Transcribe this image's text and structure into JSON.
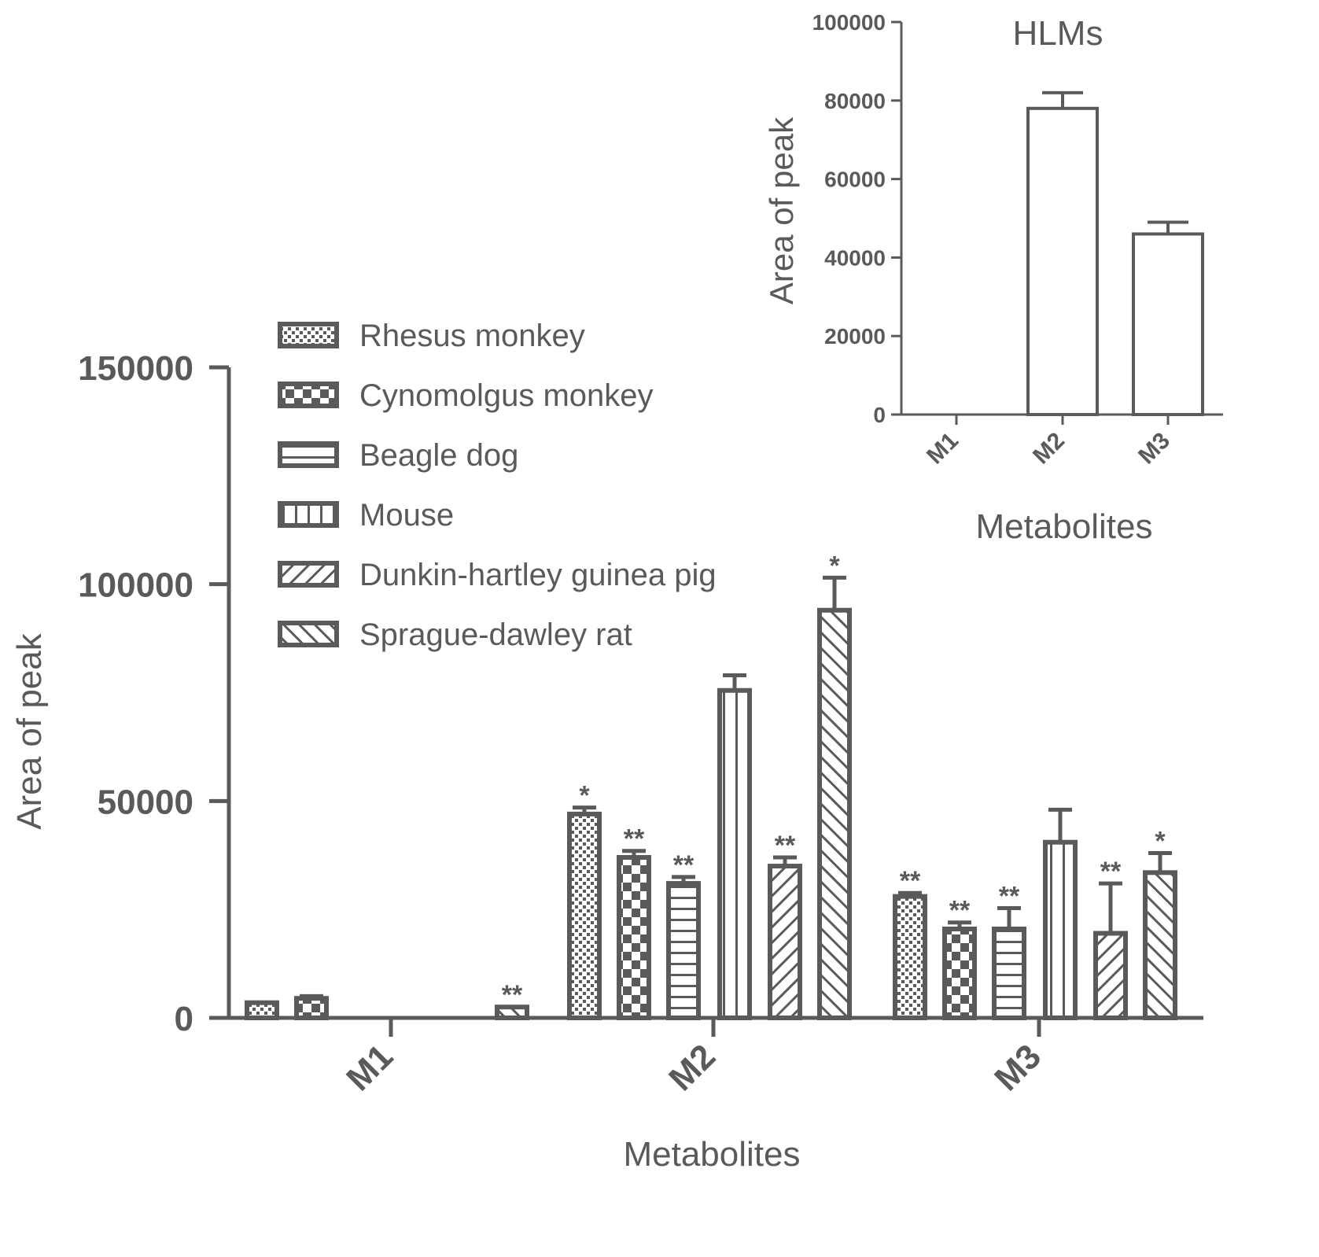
{
  "colors": {
    "ink": "#5a5a5a",
    "fill": "#ffffff"
  },
  "chart_data": [
    {
      "type": "bar",
      "title": "",
      "xlabel": "Metabolites",
      "ylabel": "Area of peak",
      "ylim": [
        0,
        150000
      ],
      "yticks": [
        "0",
        "50000",
        "100000",
        "150000"
      ],
      "categories": [
        "M1",
        "M2",
        "M3"
      ],
      "legend_position": "top-left",
      "series": [
        {
          "name": "Rhesus monkey",
          "pattern": "dots",
          "values": [
            3500,
            47000,
            28000
          ],
          "errors": [
            0,
            1500,
            800
          ],
          "significance": [
            "",
            "*",
            "**"
          ]
        },
        {
          "name": "Cynomolgus monkey",
          "pattern": "checker",
          "values": [
            4500,
            37000,
            20500
          ],
          "errors": [
            500,
            1500,
            1500
          ],
          "significance": [
            "",
            "**",
            "**"
          ]
        },
        {
          "name": "Beagle dog",
          "pattern": "hlines",
          "values": [
            0,
            31000,
            20500
          ],
          "errors": [
            0,
            1500,
            4800
          ],
          "significance": [
            "",
            "**",
            "**"
          ]
        },
        {
          "name": "Mouse",
          "pattern": "vlines",
          "values": [
            0,
            75500,
            40500
          ],
          "errors": [
            0,
            3500,
            7500
          ],
          "significance": [
            "",
            "",
            ""
          ]
        },
        {
          "name": "Dunkin-hartley guinea pig",
          "pattern": "diag-up",
          "values": [
            0,
            35000,
            19500
          ],
          "errors": [
            0,
            2000,
            11500
          ],
          "significance": [
            "",
            "**",
            "**"
          ]
        },
        {
          "name": "Sprague-dawley rat",
          "pattern": "diag-down",
          "values": [
            2500,
            94000,
            33500
          ],
          "errors": [
            0,
            7500,
            4500
          ],
          "significance": [
            "**",
            "*",
            "*"
          ]
        }
      ]
    },
    {
      "type": "bar",
      "title": "HLMs",
      "xlabel": "Metabolites",
      "ylabel": "Area of peak",
      "ylim": [
        0,
        100000
      ],
      "yticks": [
        "0",
        "20000",
        "40000",
        "60000",
        "80000",
        "100000"
      ],
      "categories": [
        "M1",
        "M2",
        "M3"
      ],
      "values": [
        0,
        78000,
        46000
      ],
      "errors": [
        0,
        4000,
        3000
      ]
    }
  ]
}
